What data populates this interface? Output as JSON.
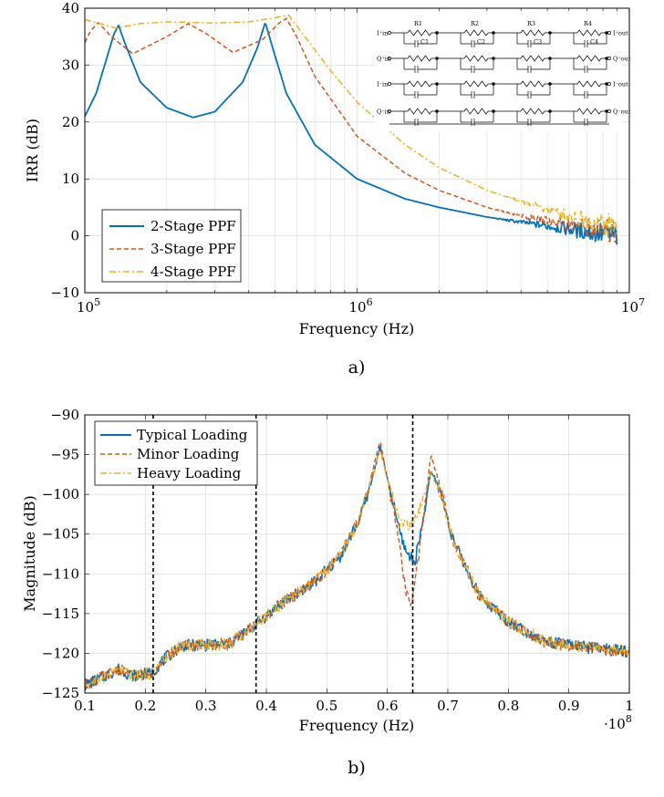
{
  "colors": {
    "series1": "#0072bd",
    "series2": "#d95319",
    "series3": "#edb120",
    "grid": "#dcdcdc",
    "marker_line": "#000000"
  },
  "chart_data": [
    {
      "id": "a",
      "type": "line",
      "caption": "a)",
      "xscale": "log",
      "xlabel": "Frequency (Hz)",
      "ylabel": "IRR (dB)",
      "xlim": [
        100000,
        10000000
      ],
      "ylim": [
        -10,
        40
      ],
      "yticks": [
        -10,
        0,
        10,
        20,
        30,
        40
      ],
      "ytick_labels": [
        "−10",
        "0",
        "10",
        "20",
        "30",
        "40"
      ],
      "xtick_labels": [
        {
          "base": "10",
          "exp": "5"
        },
        {
          "base": "10",
          "exp": "6"
        },
        {
          "base": "10",
          "exp": "7"
        }
      ],
      "legend_position": "bottom-left",
      "series": [
        {
          "name": "2-Stage PPF",
          "style": "solid",
          "x": [
            100000,
            110000,
            120000,
            128000,
            133000,
            140000,
            160000,
            200000,
            250000,
            300000,
            380000,
            430000,
            460000,
            490000,
            550000,
            700000,
            1000000,
            1500000,
            2000000,
            3000000,
            4000000,
            6000000,
            9000000
          ],
          "y": [
            21,
            25,
            31,
            35.5,
            37,
            34,
            27,
            22.5,
            20.8,
            21.8,
            27,
            33,
            37.5,
            33,
            25,
            16,
            10,
            6.5,
            5,
            3.3,
            2.4,
            1.2,
            0
          ]
        },
        {
          "name": "3-Stage PPF",
          "style": "dashed",
          "x": [
            100000,
            105000,
            112000,
            125000,
            150000,
            200000,
            240000,
            280000,
            350000,
            450000,
            520000,
            550000,
            600000,
            700000,
            1000000,
            1500000,
            2000000,
            3000000,
            4000000,
            6000000,
            9000000
          ],
          "y": [
            34,
            36,
            37.5,
            35,
            32,
            35,
            37.3,
            35.5,
            32.2,
            34.5,
            37.5,
            38.2,
            35,
            28,
            17.5,
            11,
            8,
            5,
            3.5,
            2,
            0.5
          ]
        },
        {
          "name": "4-Stage PPF",
          "style": "dashdot",
          "x": [
            100000,
            110000,
            130000,
            160000,
            200000,
            250000,
            300000,
            400000,
            500000,
            560000,
            620000,
            800000,
            1000000,
            1500000,
            2000000,
            3000000,
            4000000,
            6000000,
            9000000
          ],
          "y": [
            38,
            37.5,
            36.5,
            37.3,
            37.6,
            37.5,
            37.4,
            37.6,
            38.3,
            38.8,
            36,
            29,
            23.5,
            16,
            12,
            8,
            6,
            3.5,
            1.5
          ]
        }
      ],
      "inset_schematic": {
        "row_labels_left": [
          "I⁺in",
          "Q⁺in",
          "I⁻in",
          "Q⁻in"
        ],
        "row_labels_right": [
          "I⁺out",
          "Q⁺out",
          "I⁻out",
          "Q⁻out"
        ],
        "resistor_labels": [
          "R1",
          "R2",
          "R3",
          "R4"
        ],
        "capacitor_labels": [
          "C1",
          "C2",
          "C3",
          "C4"
        ]
      }
    },
    {
      "id": "b",
      "type": "line",
      "caption": "b)",
      "xscale": "linear",
      "xlabel": "Frequency (Hz)",
      "ylabel": "Magnitude (dB)",
      "xlim": [
        0.1,
        1
      ],
      "ylim": [
        -125,
        -90
      ],
      "xticks": [
        0.1,
        0.2,
        0.3,
        0.4,
        0.5,
        0.6,
        0.7,
        0.8,
        0.9,
        1
      ],
      "xtick_labels": [
        "0.1",
        "0.2",
        "0.3",
        "0.4",
        "0.5",
        "0.6",
        "0.7",
        "0.8",
        "0.9",
        "1"
      ],
      "x_multiplier": {
        "base": "·10",
        "exp": "8"
      },
      "yticks": [
        -125,
        -120,
        -115,
        -110,
        -105,
        -100,
        -95,
        -90
      ],
      "ytick_labels": [
        "−125",
        "−120",
        "−115",
        "−110",
        "−105",
        "−100",
        "−95",
        "−90"
      ],
      "vlines": [
        0.213,
        0.383,
        0.642
      ],
      "legend_position": "top-left",
      "series": [
        {
          "name": "Typical Loading",
          "style": "solid",
          "x": [
            0.1,
            0.13,
            0.155,
            0.18,
            0.21,
            0.235,
            0.26,
            0.29,
            0.34,
            0.38,
            0.42,
            0.48,
            0.52,
            0.555,
            0.575,
            0.588,
            0.6,
            0.62,
            0.63,
            0.645,
            0.66,
            0.672,
            0.685,
            0.71,
            0.75,
            0.8,
            0.86,
            0.92,
            1
          ],
          "y": [
            -124,
            -123,
            -122,
            -122.8,
            -122.5,
            -120.5,
            -119,
            -119,
            -118.8,
            -116.5,
            -114,
            -111,
            -108,
            -103,
            -98,
            -94,
            -98,
            -104.5,
            -107,
            -108.5,
            -103,
            -97,
            -99,
            -106,
            -112.5,
            -116,
            -118.5,
            -119.2,
            -119.8
          ]
        },
        {
          "name": "Minor Loading",
          "style": "dashed",
          "x": [
            0.1,
            0.13,
            0.155,
            0.18,
            0.21,
            0.235,
            0.26,
            0.29,
            0.34,
            0.38,
            0.42,
            0.48,
            0.52,
            0.555,
            0.575,
            0.588,
            0.6,
            0.62,
            0.63,
            0.64,
            0.655,
            0.672,
            0.685,
            0.71,
            0.75,
            0.8,
            0.86,
            0.92,
            1
          ],
          "y": [
            -124,
            -123,
            -122,
            -122.8,
            -122.5,
            -120.5,
            -119,
            -119,
            -118.8,
            -116.5,
            -114,
            -111,
            -108,
            -103,
            -97.5,
            -93.2,
            -98,
            -106,
            -112,
            -114,
            -106,
            -95,
            -98.5,
            -106,
            -112.5,
            -116,
            -118.5,
            -119.2,
            -119.8
          ]
        },
        {
          "name": "Heavy Loading",
          "style": "dashdot",
          "x": [
            0.1,
            0.13,
            0.155,
            0.18,
            0.21,
            0.235,
            0.26,
            0.29,
            0.34,
            0.38,
            0.42,
            0.48,
            0.52,
            0.555,
            0.575,
            0.588,
            0.6,
            0.62,
            0.635,
            0.65,
            0.665,
            0.672,
            0.685,
            0.71,
            0.75,
            0.8,
            0.86,
            0.92,
            1
          ],
          "y": [
            -124,
            -123,
            -122.2,
            -122.8,
            -122.5,
            -120.5,
            -119,
            -119,
            -118.8,
            -116.5,
            -114,
            -111,
            -108,
            -103,
            -98,
            -94.3,
            -98,
            -103.5,
            -104.2,
            -103,
            -99,
            -97.2,
            -99.5,
            -106,
            -112.5,
            -116,
            -118.5,
            -119.2,
            -119.8
          ]
        }
      ]
    }
  ]
}
